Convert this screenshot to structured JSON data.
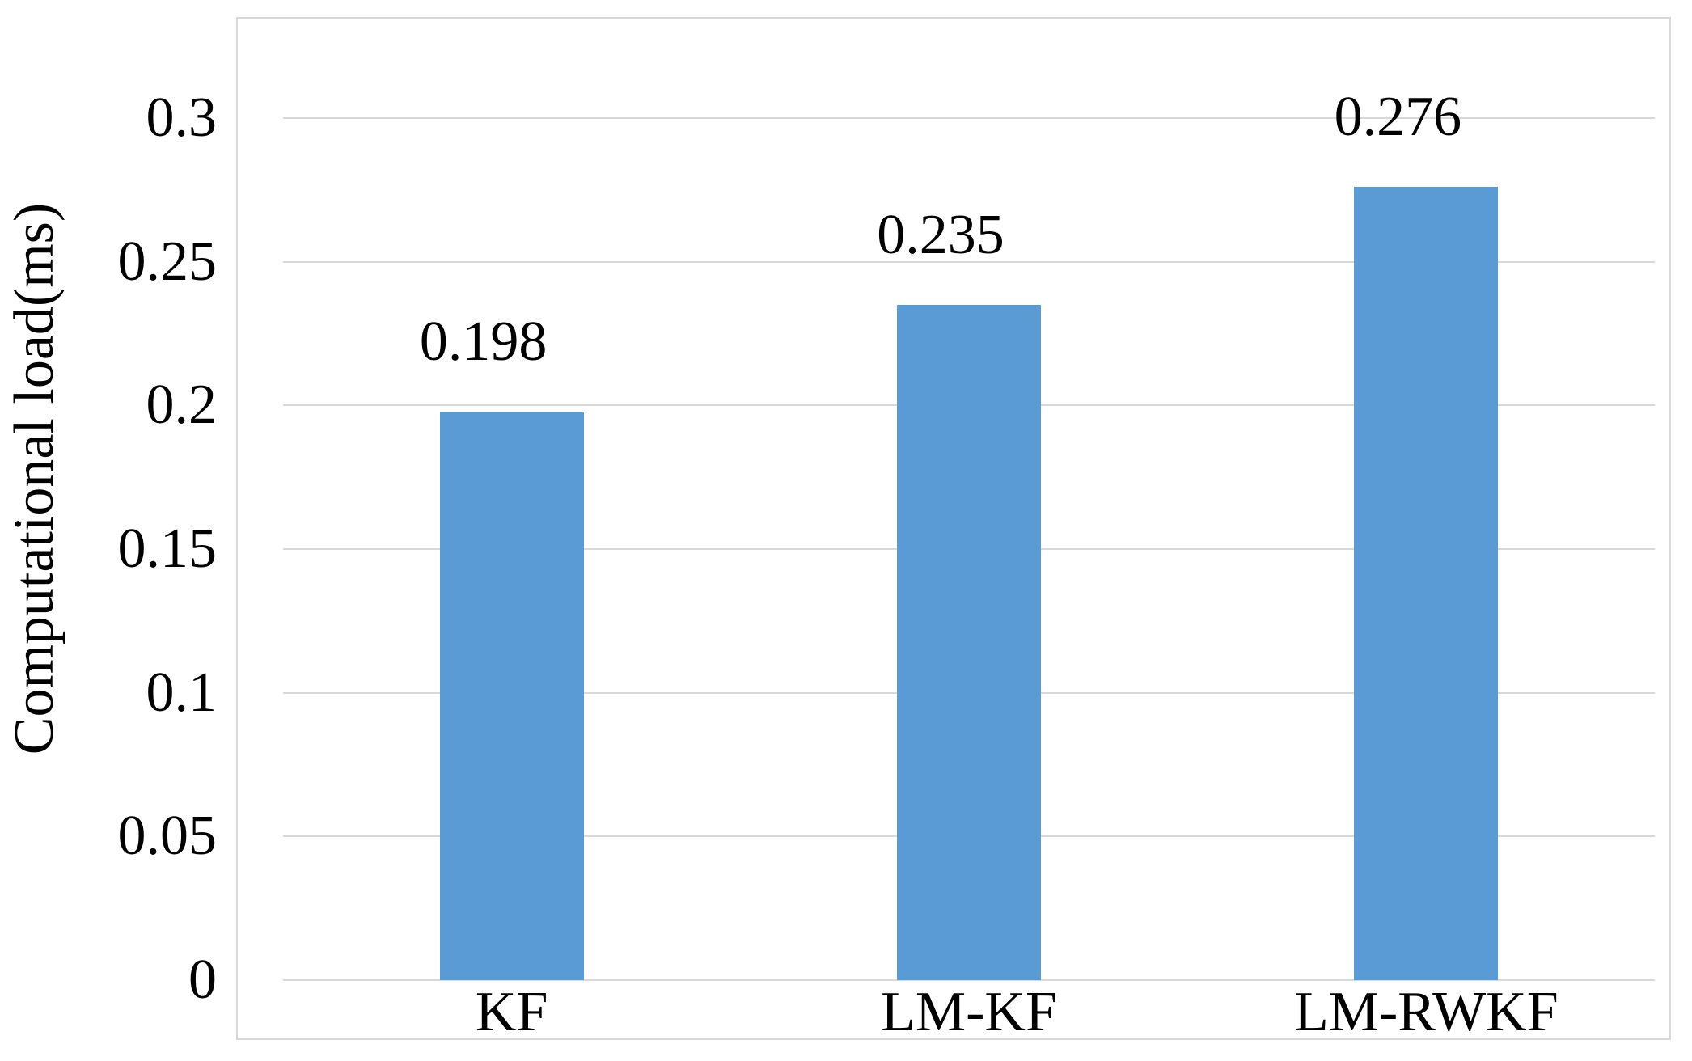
{
  "chart_data": {
    "type": "bar",
    "title": "",
    "ylabel": "Computational load(ms)",
    "xlabel": "",
    "categories": [
      "KF",
      "LM-KF",
      "LM-RWKF"
    ],
    "values": [
      0.198,
      0.235,
      0.276
    ],
    "data_labels": [
      "0.198",
      "0.235",
      "0.276"
    ],
    "yticks": [
      0,
      0.05,
      0.1,
      0.15,
      0.2,
      0.25,
      0.3
    ],
    "ytick_labels": [
      "0",
      "0.05",
      "0.1",
      "0.15",
      "0.2",
      "0.25",
      "0.3"
    ],
    "ylim": [
      0,
      0.335
    ],
    "grid": true,
    "legend_position": "none",
    "bar_color": "#5B9BD5",
    "gridline_color": "#D9D9D9",
    "border_color": "#D9D9D9",
    "text_color": "#000000",
    "background_color": "#FFFFFF"
  }
}
